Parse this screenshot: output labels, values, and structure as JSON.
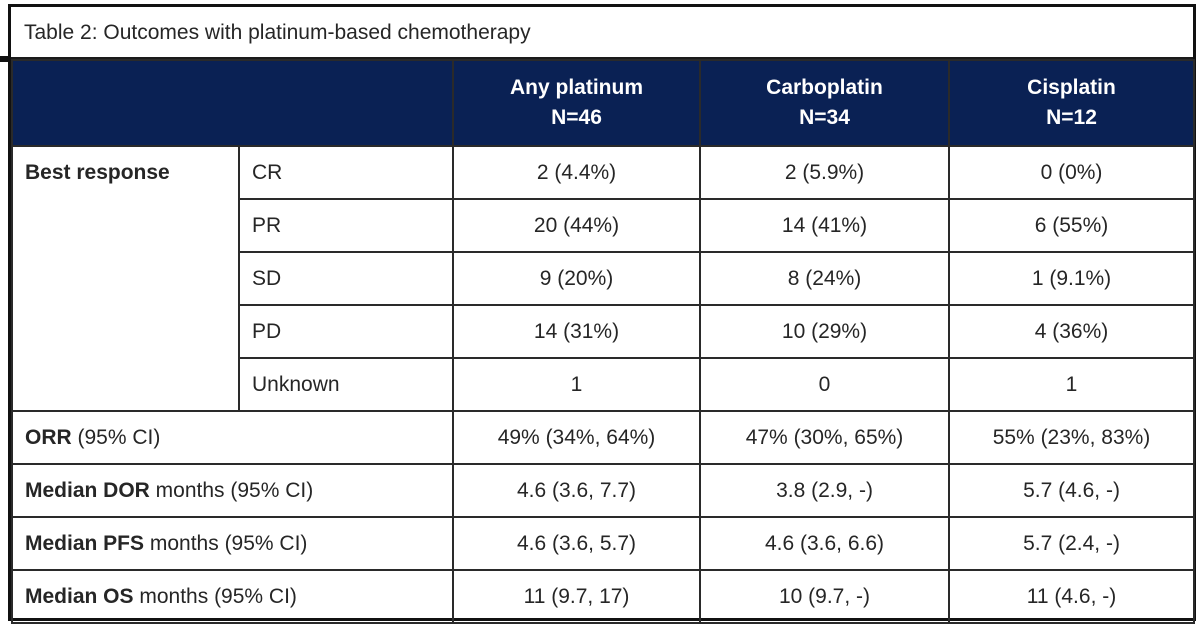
{
  "title": "Table 2: Outcomes with platinum-based chemotherapy",
  "columns": [
    {
      "name": "Any platinum",
      "n": "N=46"
    },
    {
      "name": "Carboplatin",
      "n": "N=34"
    },
    {
      "name": "Cisplatin",
      "n": "N=12"
    }
  ],
  "best_response": {
    "label": "Best response",
    "rows": [
      {
        "category": "CR",
        "values": [
          "2 (4.4%)",
          "2 (5.9%)",
          "0 (0%)"
        ]
      },
      {
        "category": "PR",
        "values": [
          "20 (44%)",
          "14 (41%)",
          "6 (55%)"
        ]
      },
      {
        "category": "SD",
        "values": [
          "9 (20%)",
          "8 (24%)",
          "1 (9.1%)"
        ]
      },
      {
        "category": "PD",
        "values": [
          "14 (31%)",
          "10 (29%)",
          "4 (36%)"
        ]
      },
      {
        "category": "Unknown",
        "values": [
          "1",
          "0",
          "1"
        ]
      }
    ]
  },
  "summary_rows": [
    {
      "label_bold": "ORR",
      "label_rest": " (95% CI)",
      "values": [
        "49% (34%, 64%)",
        "47% (30%, 65%)",
        "55% (23%, 83%)"
      ]
    },
    {
      "label_bold": "Median DOR",
      "label_rest": " months (95% CI)",
      "values": [
        "4.6 (3.6, 7.7)",
        "3.8 (2.9, -)",
        "5.7 (4.6, -)"
      ]
    },
    {
      "label_bold": "Median PFS",
      "label_rest": " months (95% CI)",
      "values": [
        "4.6 (3.6, 5.7)",
        "4.6 (3.6, 6.6)",
        "5.7 (2.4, -)"
      ]
    },
    {
      "label_bold": "Median OS",
      "label_rest": " months (95% CI)",
      "values": [
        "11 (9.7, 17)",
        "10 (9.7, -)",
        "11 (4.6, -)"
      ]
    }
  ]
}
